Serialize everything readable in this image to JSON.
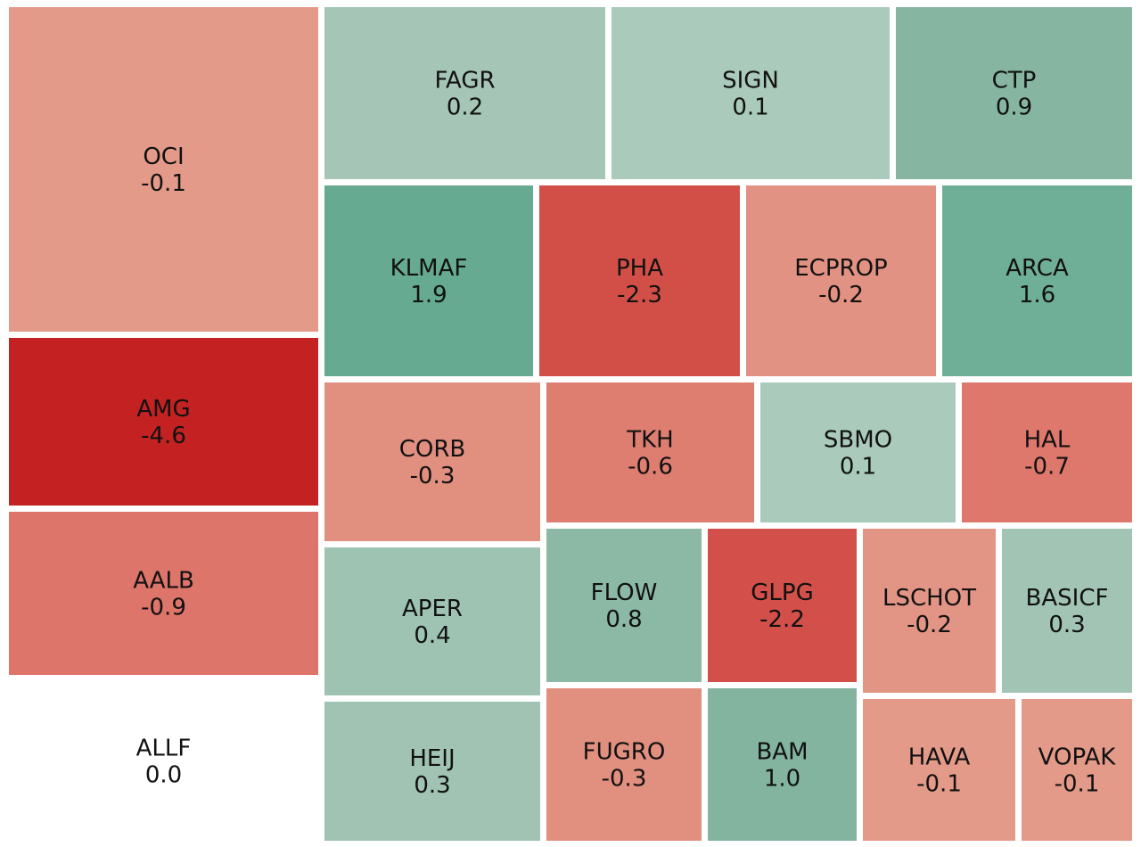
{
  "chart_data": {
    "type": "treemap",
    "title": "",
    "color_scale": {
      "negative_strong": "#c62828",
      "negative_light": "#e5a090",
      "neutral": "#ffffff",
      "positive_light": "#a8c9bb",
      "positive_strong": "#63a88f"
    },
    "tiles": [
      {
        "ticker": "OCI",
        "change": -0.1,
        "value_label": "-0.1",
        "color": "#e49a89"
      },
      {
        "ticker": "AMG",
        "change": -4.6,
        "value_label": "-4.6",
        "color": "#c42222"
      },
      {
        "ticker": "AALB",
        "change": -0.9,
        "value_label": "-0.9",
        "color": "#dd756a"
      },
      {
        "ticker": "ALLF",
        "change": 0.0,
        "value_label": "0.0",
        "color": "#ffffff"
      },
      {
        "ticker": "FAGR",
        "change": 0.2,
        "value_label": "0.2",
        "color": "#a5c6b7"
      },
      {
        "ticker": "SIGN",
        "change": 0.1,
        "value_label": "0.1",
        "color": "#aacabb"
      },
      {
        "ticker": "CTP",
        "change": 0.9,
        "value_label": "0.9",
        "color": "#86b5a2"
      },
      {
        "ticker": "KLMAF",
        "change": 1.9,
        "value_label": "1.9",
        "color": "#66aa91"
      },
      {
        "ticker": "PHA",
        "change": -2.3,
        "value_label": "-2.3",
        "color": "#d24f47"
      },
      {
        "ticker": "ECPROP",
        "change": -0.2,
        "value_label": "-0.2",
        "color": "#e29282"
      },
      {
        "ticker": "ARCA",
        "change": 1.6,
        "value_label": "1.6",
        "color": "#6fae97"
      },
      {
        "ticker": "CORB",
        "change": -0.3,
        "value_label": "-0.3",
        "color": "#e18f7f"
      },
      {
        "ticker": "TKH",
        "change": -0.6,
        "value_label": "-0.6",
        "color": "#de7e71"
      },
      {
        "ticker": "SBMO",
        "change": 0.1,
        "value_label": "0.1",
        "color": "#aacabb"
      },
      {
        "ticker": "HAL",
        "change": -0.7,
        "value_label": "-0.7",
        "color": "#de786c"
      },
      {
        "ticker": "APER",
        "change": 0.4,
        "value_label": "0.4",
        "color": "#9ec3b3"
      },
      {
        "ticker": "FLOW",
        "change": 0.8,
        "value_label": "0.8",
        "color": "#8bb9a6"
      },
      {
        "ticker": "GLPG",
        "change": -2.2,
        "value_label": "-2.2",
        "color": "#d25049"
      },
      {
        "ticker": "LSCHOT",
        "change": -0.2,
        "value_label": "-0.2",
        "color": "#e39585"
      },
      {
        "ticker": "BASICF",
        "change": 0.3,
        "value_label": "0.3",
        "color": "#a2c4b5"
      },
      {
        "ticker": "HEIJ",
        "change": 0.3,
        "value_label": "0.3",
        "color": "#a0c3b3"
      },
      {
        "ticker": "FUGRO",
        "change": -0.3,
        "value_label": "-0.3",
        "color": "#e18f7f"
      },
      {
        "ticker": "BAM",
        "change": 1.0,
        "value_label": "1.0",
        "color": "#83b4a0"
      },
      {
        "ticker": "HAVA",
        "change": -0.1,
        "value_label": "-0.1",
        "color": "#e49a89"
      },
      {
        "ticker": "VOPAK",
        "change": -0.1,
        "value_label": "-0.1",
        "color": "#e49a89"
      }
    ]
  }
}
